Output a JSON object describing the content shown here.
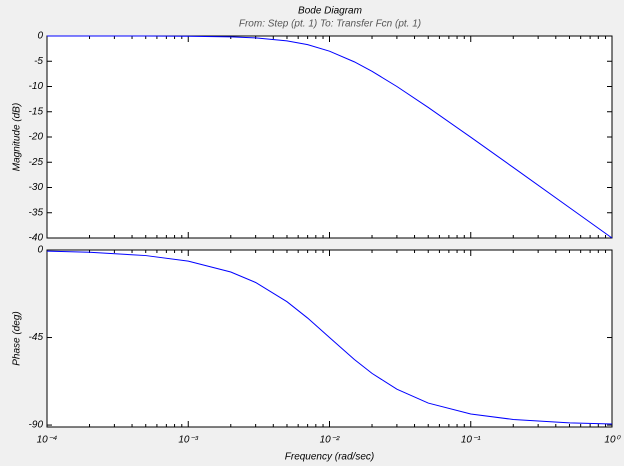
{
  "chart_data": [
    {
      "type": "line",
      "title": "Bode Diagram",
      "subtitle": "From: Step (pt. 1)  To: Transfer Fcn (pt. 1)",
      "ylabel": "Magnitude (dB)",
      "log_x": true,
      "xlim": [
        0.0001,
        1
      ],
      "ylim": [
        -40,
        0
      ],
      "yticks": [
        0,
        -5,
        -10,
        -15,
        -20,
        -25,
        -30,
        -35,
        -40
      ],
      "x": [
        0.0001,
        0.0002,
        0.0005,
        0.001,
        0.002,
        0.003,
        0.005,
        0.007,
        0.01,
        0.015,
        0.02,
        0.03,
        0.05,
        0.1,
        0.2,
        0.5,
        1
      ],
      "series": [
        {
          "color": "#0000ff",
          "values": [
            0,
            0,
            -0.011,
            -0.043,
            -0.17,
            -0.37,
            -0.97,
            -1.71,
            -3.01,
            -5.12,
            -6.99,
            -10.0,
            -14.15,
            -20.04,
            -26.03,
            -33.98,
            -40.0
          ]
        }
      ]
    },
    {
      "type": "line",
      "ylabel": "Phase (deg)",
      "xlabel": "Frequency  (rad/sec)",
      "log_x": true,
      "xlim": [
        0.0001,
        1
      ],
      "ylim": [
        -91,
        0
      ],
      "yticks": [
        0,
        -45,
        -90
      ],
      "xticks": [
        {
          "value": 0.0001,
          "label": "10⁻⁴"
        },
        {
          "value": 0.001,
          "label": "10⁻³"
        },
        {
          "value": 0.01,
          "label": "10⁻²"
        },
        {
          "value": 0.1,
          "label": "10⁻¹"
        },
        {
          "value": 1,
          "label": "10⁰"
        }
      ],
      "x": [
        0.0001,
        0.0002,
        0.0005,
        0.001,
        0.002,
        0.003,
        0.005,
        0.007,
        0.01,
        0.015,
        0.02,
        0.03,
        0.05,
        0.1,
        0.2,
        0.5,
        1
      ],
      "series": [
        {
          "color": "#0000ff",
          "values": [
            -0.57,
            -1.15,
            -2.86,
            -5.71,
            -11.31,
            -16.7,
            -26.57,
            -34.99,
            -45,
            -56.31,
            -63.43,
            -71.57,
            -78.69,
            -84.29,
            -87.14,
            -88.85,
            -89.43
          ]
        }
      ]
    }
  ]
}
